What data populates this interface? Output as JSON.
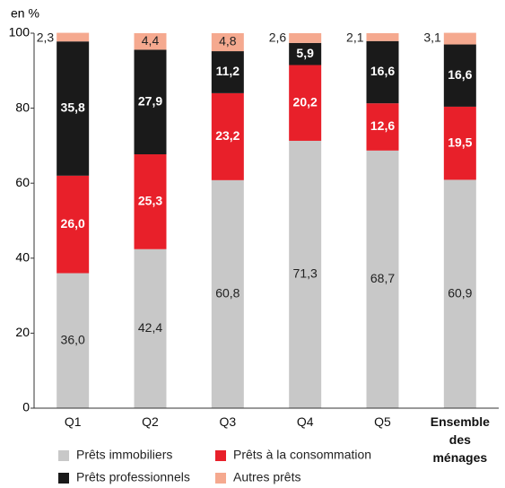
{
  "chart_data": {
    "type": "stacked_bar",
    "y_label": "en %",
    "categories": [
      "Q1",
      "Q2",
      "Q3",
      "Q4",
      "Q5",
      "Ensemble des ménages"
    ],
    "ylim": [
      0,
      100
    ],
    "yticks": [
      0,
      20,
      40,
      60,
      80,
      100
    ],
    "series": [
      {
        "name": "Prêts immobiliers",
        "color": "#c8c8c8",
        "values": [
          36.0,
          42.4,
          60.8,
          71.3,
          68.7,
          60.9
        ],
        "value_labels": [
          "36,0",
          "42,4",
          "60,8",
          "71,3",
          "68,7",
          "60,9"
        ]
      },
      {
        "name": "Prêts à la consommation",
        "color": "#e8202a",
        "values": [
          26.0,
          25.3,
          23.2,
          20.2,
          12.6,
          19.5
        ],
        "value_labels": [
          "26,0",
          "25,3",
          "23,2",
          "20,2",
          "12,6",
          "19,5"
        ]
      },
      {
        "name": "Prêts professionnels",
        "color": "#1a1a1a",
        "values": [
          35.8,
          27.9,
          11.2,
          5.9,
          16.6,
          16.6
        ],
        "value_labels": [
          "35,8",
          "27,9",
          "11,2",
          "5,9",
          "16,6",
          "16,6"
        ]
      },
      {
        "name": "Autres prêts",
        "color": "#f5a98f",
        "values": [
          2.3,
          4.4,
          4.8,
          2.6,
          2.1,
          3.1
        ],
        "value_labels": [
          "2,3",
          "4,4",
          "4,8",
          "2,6",
          "2,1",
          "3,1"
        ]
      }
    ]
  }
}
